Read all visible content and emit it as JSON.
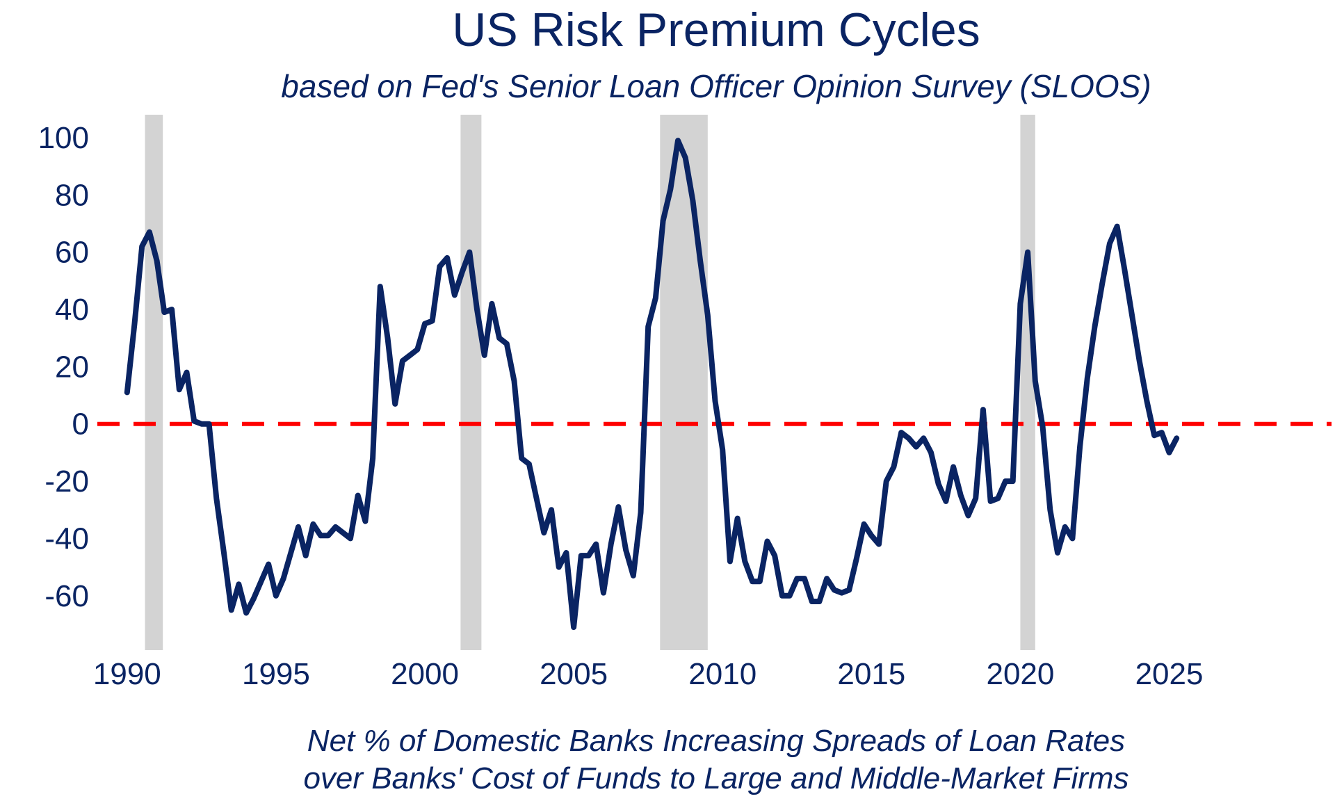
{
  "chart_data": {
    "type": "line",
    "title": "US Risk Premium Cycles",
    "subtitle": "based on Fed's Senior Loan Officer Opinion Survey (SLOOS)",
    "caption_line1": "Net % of Domestic Banks Increasing Spreads of Loan Rates",
    "caption_line2": "over Banks' Cost of Funds to Large and Middle-Market Firms",
    "xlim": [
      1989.0,
      2028.0
    ],
    "ylim": [
      -79,
      108
    ],
    "x_ticks": [
      1990,
      1995,
      2000,
      2005,
      2010,
      2015,
      2020,
      2025
    ],
    "x_tick_labels": [
      "1990",
      "1995",
      "2000",
      "2005",
      "2010",
      "2015",
      "2020",
      "2025"
    ],
    "y_ticks": [
      100,
      80,
      60,
      40,
      20,
      0,
      -20,
      -40,
      -60
    ],
    "y_tick_labels": [
      "100",
      "80",
      "60",
      "40",
      "20",
      "0",
      "-20",
      "-40",
      "-60"
    ],
    "reference_line": {
      "y": 0,
      "style": "dashed",
      "color": "#ff0000"
    },
    "recessions": [
      {
        "start": 1990.6,
        "end": 1991.2
      },
      {
        "start": 2001.2,
        "end": 2001.9
      },
      {
        "start": 2007.9,
        "end": 2009.5
      },
      {
        "start": 2020.0,
        "end": 2020.5
      }
    ],
    "series": [
      {
        "color": "#0a2463",
        "x": [
          1990.0,
          1990.25,
          1990.5,
          1990.75,
          1991.0,
          1991.25,
          1991.5,
          1991.75,
          1992.0,
          1992.25,
          1992.5,
          1992.75,
          1993.0,
          1993.25,
          1993.5,
          1993.75,
          1994.0,
          1994.25,
          1994.5,
          1994.75,
          1995.0,
          1995.25,
          1995.5,
          1995.75,
          1996.0,
          1996.25,
          1996.5,
          1996.75,
          1997.0,
          1997.25,
          1997.5,
          1997.75,
          1998.0,
          1998.25,
          1998.5,
          1998.75,
          1999.0,
          1999.25,
          1999.5,
          1999.75,
          2000.0,
          2000.25,
          2000.5,
          2000.75,
          2001.0,
          2001.25,
          2001.5,
          2001.75,
          2002.0,
          2002.25,
          2002.5,
          2002.75,
          2003.0,
          2003.25,
          2003.5,
          2003.75,
          2004.0,
          2004.25,
          2004.5,
          2004.75,
          2005.0,
          2005.25,
          2005.5,
          2005.75,
          2006.0,
          2006.25,
          2006.5,
          2006.75,
          2007.0,
          2007.25,
          2007.5,
          2007.75,
          2008.0,
          2008.25,
          2008.5,
          2008.75,
          2009.0,
          2009.25,
          2009.5,
          2009.75,
          2010.0,
          2010.25,
          2010.5,
          2010.75,
          2011.0,
          2011.25,
          2011.5,
          2011.75,
          2012.0,
          2012.25,
          2012.5,
          2012.75,
          2013.0,
          2013.25,
          2013.5,
          2013.75,
          2014.0,
          2014.25,
          2014.5,
          2014.75,
          2015.0,
          2015.25,
          2015.5,
          2015.75,
          2016.0,
          2016.25,
          2016.5,
          2016.75,
          2017.0,
          2017.25,
          2017.5,
          2017.75,
          2018.0,
          2018.25,
          2018.5,
          2018.75,
          2019.0,
          2019.25,
          2019.5,
          2019.75,
          2020.0,
          2020.25,
          2020.5,
          2020.75,
          2021.0,
          2021.25,
          2021.5,
          2021.75,
          2022.0,
          2022.25,
          2022.5,
          2022.75,
          2023.0,
          2023.25,
          2023.5,
          2023.75,
          2024.0,
          2024.25,
          2024.5,
          2024.75,
          2025.0,
          2025.25
        ],
        "y": [
          11,
          35,
          62,
          67,
          57,
          39,
          40,
          12,
          18,
          1,
          0,
          0,
          -26,
          -45,
          -65,
          -56,
          -66,
          -61,
          -55,
          -49,
          -60,
          -54,
          -45,
          -36,
          -46,
          -35,
          -39,
          -39,
          -36,
          -38,
          -40,
          -25,
          -34,
          -12,
          48,
          30,
          7,
          22,
          24,
          26,
          35,
          36,
          55,
          58,
          45,
          53,
          60,
          40,
          24,
          42,
          30,
          28,
          15,
          -12,
          -14,
          -26,
          -38,
          -30,
          -50,
          -45,
          -71,
          -46,
          -46,
          -42,
          -59,
          -42,
          -29,
          -44,
          -53,
          -31,
          34,
          44,
          71,
          82,
          99,
          93,
          78,
          57,
          38,
          8,
          -9,
          -48,
          -33,
          -48,
          -55,
          -55,
          -41,
          -46,
          -60,
          -60,
          -54,
          -54,
          -62,
          -62,
          -54,
          -58,
          -59,
          -58,
          -47,
          -35,
          -39,
          -42,
          -20,
          -15,
          -3,
          -5,
          -8,
          -5,
          -10,
          -21,
          -27,
          -15,
          -25,
          -32,
          -26,
          5,
          -27,
          -26,
          -20,
          -20,
          42,
          60,
          15,
          -1,
          -30,
          -45,
          -36,
          -40,
          -8,
          16,
          34,
          49,
          63,
          69,
          54,
          38,
          22,
          8,
          -4,
          -3,
          -10,
          -5
        ]
      }
    ]
  }
}
